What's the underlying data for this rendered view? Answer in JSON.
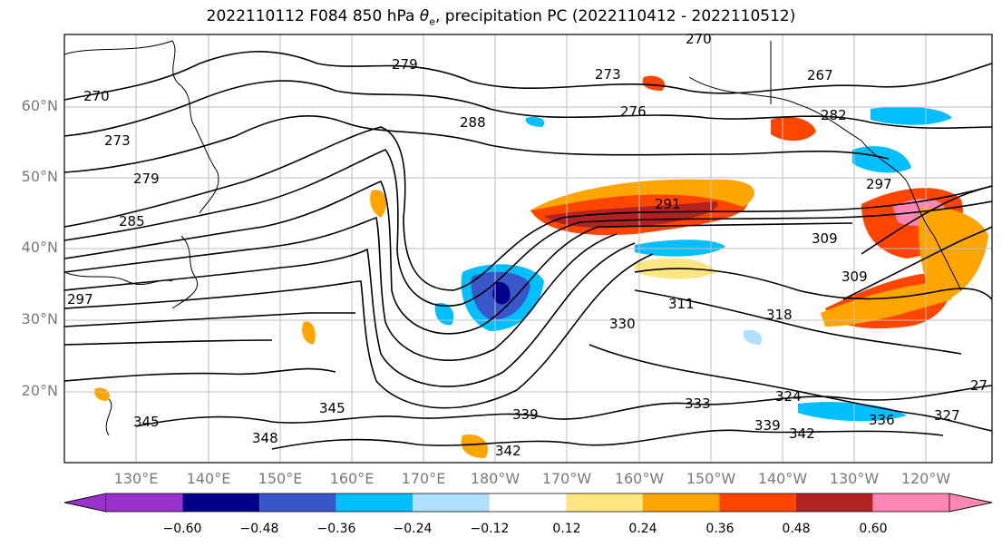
{
  "title": {
    "prefix": "2022110112 F084 850 hPa ",
    "symbol": "θ",
    "subscript": "e",
    "suffix": ", precipitation PC (2022110412 - 2022110512)"
  },
  "lat_labels": [
    "60°N",
    "50°N",
    "40°N",
    "30°N",
    "20°N"
  ],
  "lon_labels": [
    "130°E",
    "140°E",
    "150°E",
    "160°E",
    "170°E",
    "180°W",
    "170°W",
    "160°W",
    "150°W",
    "140°W",
    "130°W",
    "120°W"
  ],
  "contour_labels": [
    "270",
    "273",
    "279",
    "285",
    "297",
    "279",
    "273",
    "276",
    "288",
    "270",
    "267",
    "282",
    "297",
    "291",
    "309",
    "309",
    "318",
    "311",
    "330",
    "324",
    "327",
    "333",
    "336",
    "339",
    "342",
    "345",
    "345",
    "348",
    "339",
    "342",
    "27"
  ],
  "colorbar": {
    "ticks": [
      "−0.60",
      "−0.48",
      "−0.36",
      "−0.24",
      "−0.12",
      "0.12",
      "0.24",
      "0.36",
      "0.48",
      "0.60"
    ],
    "colors": [
      "#9932cc",
      "#00008b",
      "#3a57c9",
      "#00bfff",
      "#b0e0ff",
      "#ffffff",
      "#ffe680",
      "#ffa500",
      "#ff4500",
      "#b22222",
      "#ff85b3",
      "#ff85b3"
    ]
  },
  "colors": {
    "land_coast": "#000000",
    "grid": "#bfbfbf",
    "label_gray": "#7a7a7a"
  }
}
